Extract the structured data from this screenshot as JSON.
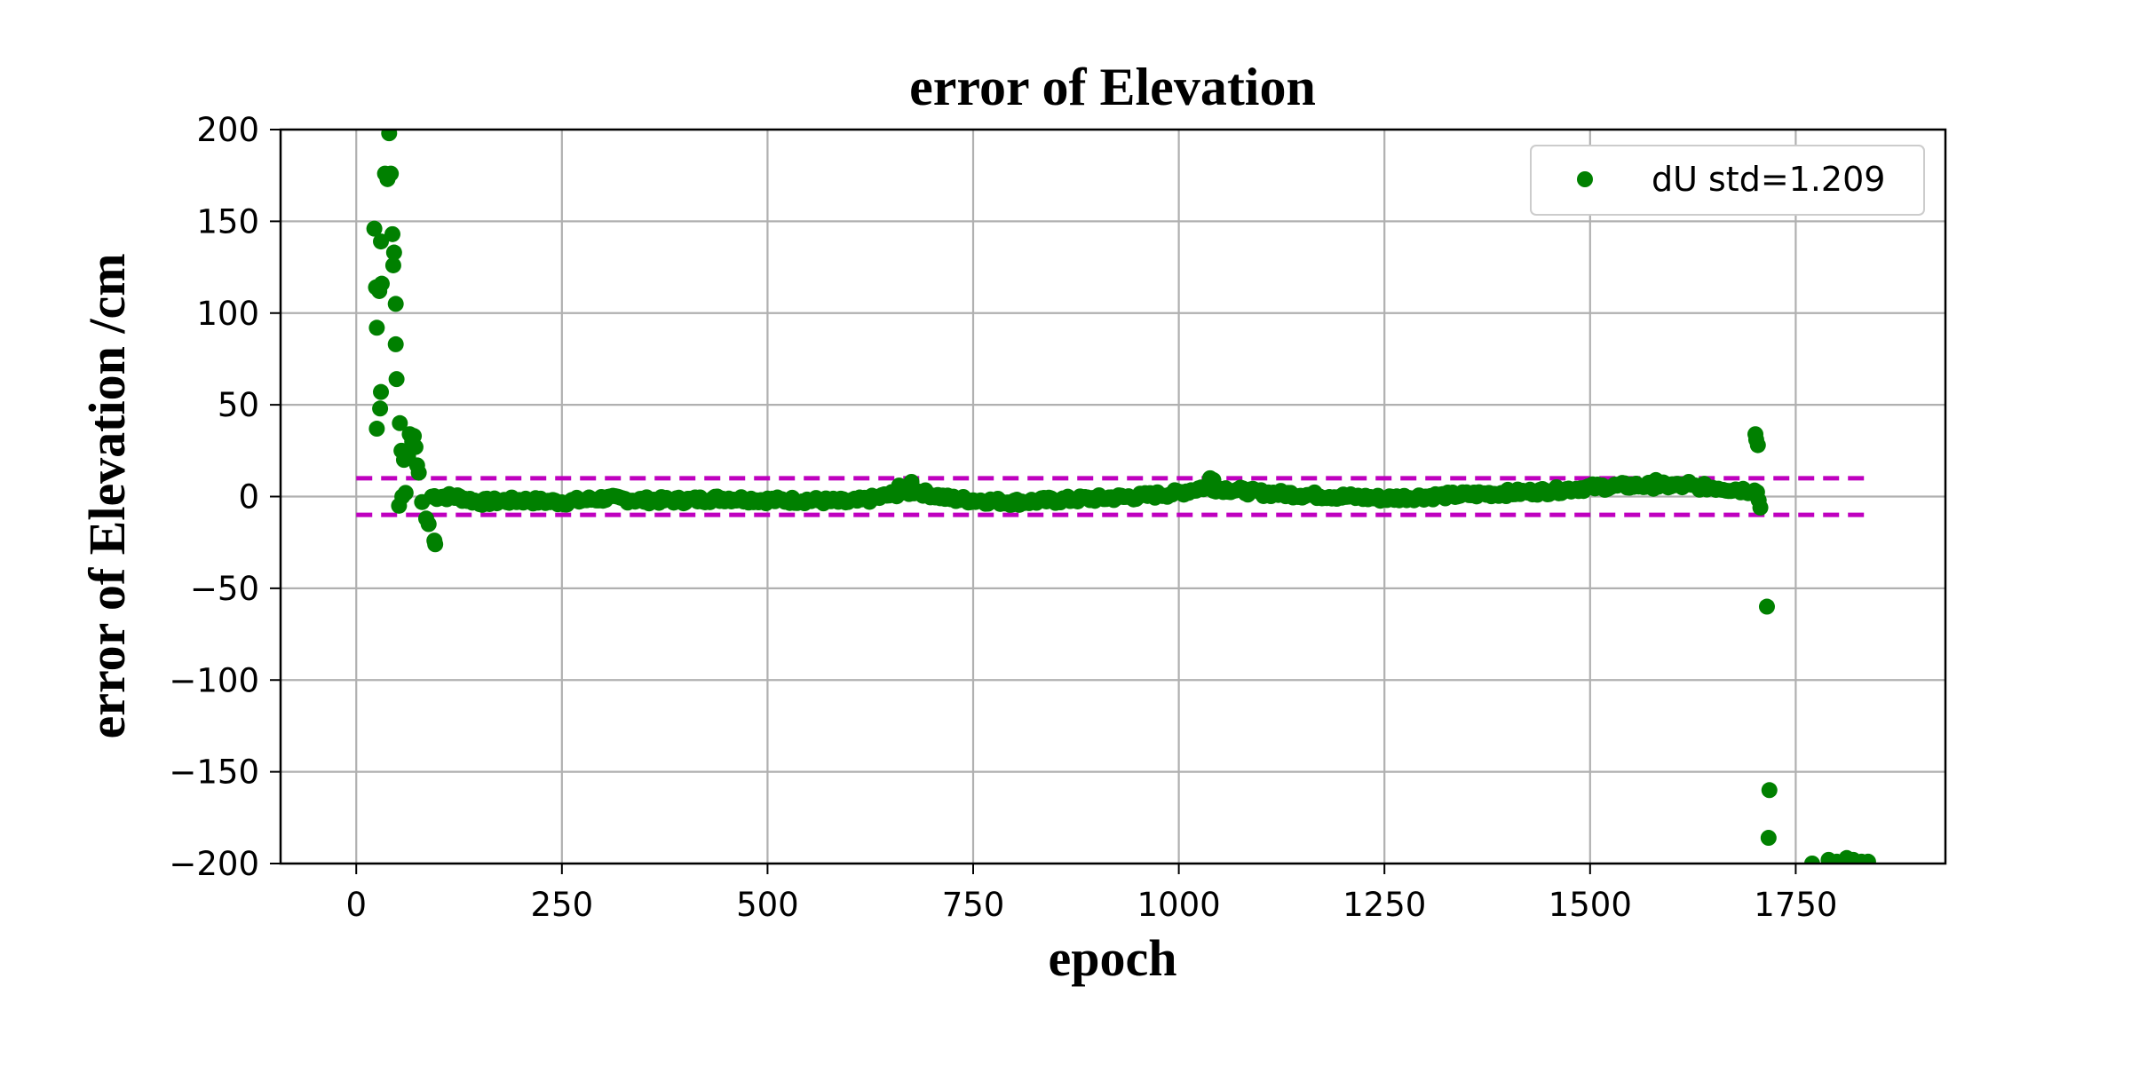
{
  "chart_data": {
    "type": "scatter",
    "title": "error of Elevation",
    "xlabel": "epoch",
    "ylabel": "error of Elevation /cm",
    "xlim": [
      -92,
      1932
    ],
    "ylim": [
      -200,
      200
    ],
    "xticks": [
      0,
      250,
      500,
      750,
      1000,
      1250,
      1500,
      1750
    ],
    "yticks": [
      200,
      150,
      100,
      50,
      0,
      -50,
      -100,
      -150,
      -200
    ],
    "xtick_labels": [
      "0",
      "250",
      "500",
      "750",
      "1000",
      "1250",
      "1500",
      "1750"
    ],
    "ytick_labels": [
      "200",
      "150",
      "100",
      "50",
      "0",
      "−50",
      "−100",
      "−150",
      "−200"
    ],
    "grid": true,
    "legend_position": "top-right",
    "series": [
      {
        "name": "dU std=1.209",
        "color": "#008000",
        "marker": "circle",
        "baseline": [
          [
            92,
            0
          ],
          [
            120,
            0
          ],
          [
            150,
            -3
          ],
          [
            200,
            -2
          ],
          [
            250,
            -3
          ],
          [
            300,
            -1
          ],
          [
            350,
            -2
          ],
          [
            400,
            -2
          ],
          [
            450,
            -1
          ],
          [
            500,
            -2
          ],
          [
            550,
            -2
          ],
          [
            600,
            -3
          ],
          [
            630,
            -1
          ],
          [
            660,
            2
          ],
          [
            680,
            3
          ],
          [
            720,
            -1
          ],
          [
            750,
            -2
          ],
          [
            800,
            -3
          ],
          [
            850,
            -2
          ],
          [
            900,
            -1
          ],
          [
            950,
            0
          ],
          [
            1000,
            2
          ],
          [
            1030,
            5
          ],
          [
            1060,
            4
          ],
          [
            1100,
            2
          ],
          [
            1150,
            1
          ],
          [
            1200,
            0
          ],
          [
            1250,
            -1
          ],
          [
            1300,
            0
          ],
          [
            1350,
            1
          ],
          [
            1400,
            2
          ],
          [
            1450,
            3
          ],
          [
            1500,
            5
          ],
          [
            1550,
            6
          ],
          [
            1600,
            6
          ],
          [
            1650,
            5
          ],
          [
            1700,
            3
          ],
          [
            1706,
            3
          ]
        ],
        "points": [
          [
            40,
            198
          ],
          [
            35,
            176
          ],
          [
            38,
            173
          ],
          [
            42,
            176
          ],
          [
            22,
            146
          ],
          [
            30,
            139
          ],
          [
            44,
            143
          ],
          [
            46,
            133
          ],
          [
            45,
            126
          ],
          [
            24,
            114
          ],
          [
            31,
            116
          ],
          [
            28,
            112
          ],
          [
            48,
            105
          ],
          [
            25,
            92
          ],
          [
            48,
            83
          ],
          [
            49,
            64
          ],
          [
            30,
            57
          ],
          [
            29,
            48
          ],
          [
            53,
            40
          ],
          [
            25,
            37
          ],
          [
            65,
            34
          ],
          [
            70,
            33
          ],
          [
            68,
            30
          ],
          [
            72,
            27
          ],
          [
            55,
            25
          ],
          [
            63,
            22
          ],
          [
            58,
            20
          ],
          [
            74,
            17
          ],
          [
            76,
            13
          ],
          [
            60,
            2
          ],
          [
            56,
            0
          ],
          [
            52,
            -5
          ],
          [
            80,
            -3
          ],
          [
            85,
            -12
          ],
          [
            88,
            -15
          ],
          [
            96,
            -26
          ],
          [
            95,
            -24
          ],
          [
            660,
            6
          ],
          [
            675,
            8
          ],
          [
            1038,
            10
          ],
          [
            1042,
            9
          ],
          [
            1580,
            9
          ],
          [
            1620,
            8
          ],
          [
            1701,
            34
          ],
          [
            1702,
            31
          ],
          [
            1704,
            28
          ],
          [
            1705,
            -2
          ],
          [
            1707,
            -6
          ],
          [
            1715,
            -60
          ],
          [
            1718,
            -160
          ],
          [
            1717,
            -186
          ],
          [
            1735,
            -204
          ],
          [
            1770,
            -200
          ],
          [
            1790,
            -198
          ],
          [
            1800,
            -199
          ],
          [
            1812,
            -197
          ],
          [
            1820,
            -198
          ],
          [
            1830,
            -199
          ],
          [
            1838,
            -199
          ]
        ]
      }
    ],
    "threshold_lines": [
      {
        "y": 10,
        "x_range": [
          0,
          1840
        ],
        "color": "#bf00bf",
        "style": "dashed"
      },
      {
        "y": -10,
        "x_range": [
          0,
          1840
        ],
        "color": "#bf00bf",
        "style": "dashed"
      }
    ]
  }
}
